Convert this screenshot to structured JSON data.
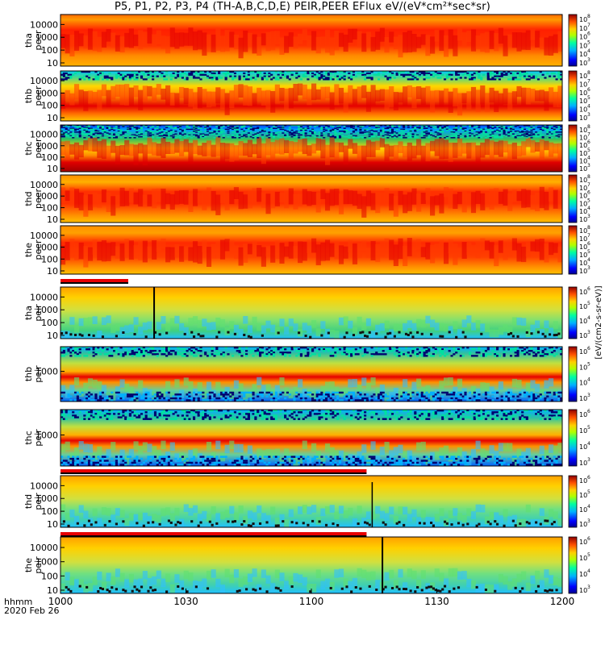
{
  "chart_data": {
    "type": "heatmap",
    "title": "P5, P1, P2, P3, P4 (TH-A,B,C,D,E) PEIR,PEER EFlux eV/(eV*cm²*sec*sr)",
    "x_ticks": [
      "1000",
      "1030",
      "1100",
      "1130",
      "1200"
    ],
    "x_range": [
      "1000",
      "1200"
    ],
    "x_label_format": "hhmm",
    "date": "2020 Feb 26",
    "colorbar_ticks": [
      "10³",
      "10⁴",
      "10⁵",
      "10⁶",
      "10⁷",
      "10⁸"
    ],
    "colorbar_label": "[eV/(cm2-s-sr-eV)]",
    "panels": [
      {
        "probe": "tha",
        "species": "peer",
        "ylabel": "tha peer",
        "yticks": [
          "10",
          "100",
          "1000",
          "10000"
        ],
        "log_scale": true,
        "colorbar_min": 3,
        "colorbar_max": 8
      },
      {
        "probe": "thb",
        "species": "peer",
        "ylabel": "thb peer",
        "yticks": [
          "10",
          "100",
          "1000",
          "10000"
        ],
        "log_scale": true,
        "colorbar_min": 3,
        "colorbar_max": 8
      },
      {
        "probe": "thc",
        "species": "peer",
        "ylabel": "thc peer",
        "yticks": [
          "10",
          "100",
          "1000",
          "10000"
        ],
        "log_scale": true,
        "colorbar_min": 3,
        "colorbar_max": 8
      },
      {
        "probe": "thd",
        "species": "peer",
        "ylabel": "thd peer",
        "yticks": [
          "10",
          "100",
          "1000",
          "10000"
        ],
        "log_scale": true,
        "colorbar_min": 3,
        "colorbar_max": 8
      },
      {
        "probe": "the",
        "species": "peer",
        "ylabel": "the peer",
        "yticks": [
          "10",
          "100",
          "1000",
          "10000"
        ],
        "log_scale": true,
        "colorbar_min": 3,
        "colorbar_max": 8
      },
      {
        "probe": "tha",
        "species": "peir",
        "ylabel": "tha peir",
        "yticks": [
          "10",
          "100",
          "1000",
          "10000"
        ],
        "log_scale": true,
        "colorbar_min": 3,
        "colorbar_max": 6
      },
      {
        "probe": "thb",
        "species": "peir",
        "ylabel": "thb peir",
        "yticks": [
          "1000"
        ],
        "log_scale": true,
        "colorbar_min": 3,
        "colorbar_max": 6
      },
      {
        "probe": "thc",
        "species": "peir",
        "ylabel": "thc peir",
        "yticks": [
          "1000"
        ],
        "log_scale": true,
        "colorbar_min": 3,
        "colorbar_max": 6
      },
      {
        "probe": "thd",
        "species": "peir",
        "ylabel": "thd peir",
        "yticks": [
          "10",
          "100",
          "1000",
          "10000"
        ],
        "log_scale": true,
        "colorbar_min": 3,
        "colorbar_max": 6
      },
      {
        "probe": "the",
        "species": "peir",
        "ylabel": "the peir",
        "yticks": [
          "10",
          "100",
          "1000",
          "10000"
        ],
        "log_scale": true,
        "colorbar_min": 3,
        "colorbar_max": 6
      }
    ]
  },
  "colors": {
    "jet_red": "#e60000",
    "jet_orange": "#ff8c00",
    "jet_yellow": "#ffd700",
    "jet_green": "#1edc50",
    "jet_cyan": "#00c8ff",
    "jet_blue": "#0030ff",
    "bar_red": "#e60000",
    "bar_black": "#000000"
  }
}
